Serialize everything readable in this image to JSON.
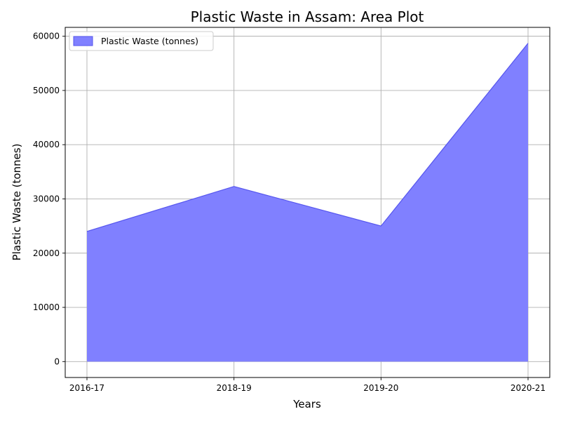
{
  "chart_data": {
    "type": "area",
    "title": "Plastic Waste in Assam: Area Plot",
    "xlabel": "Years",
    "ylabel": "Plastic Waste (tonnes)",
    "categories": [
      "2016-17",
      "2018-19",
      "2019-20",
      "2020-21"
    ],
    "series": [
      {
        "name": "Plastic Waste (tonnes)",
        "values": [
          24000,
          32300,
          25000,
          58700
        ],
        "color": "#8080ff",
        "edge_color": "#5555ee"
      }
    ],
    "y_ticks": [
      0,
      10000,
      20000,
      30000,
      40000,
      50000,
      60000
    ],
    "ylim": [
      -2935,
      61635
    ],
    "grid": true,
    "legend_position": "top-left"
  }
}
